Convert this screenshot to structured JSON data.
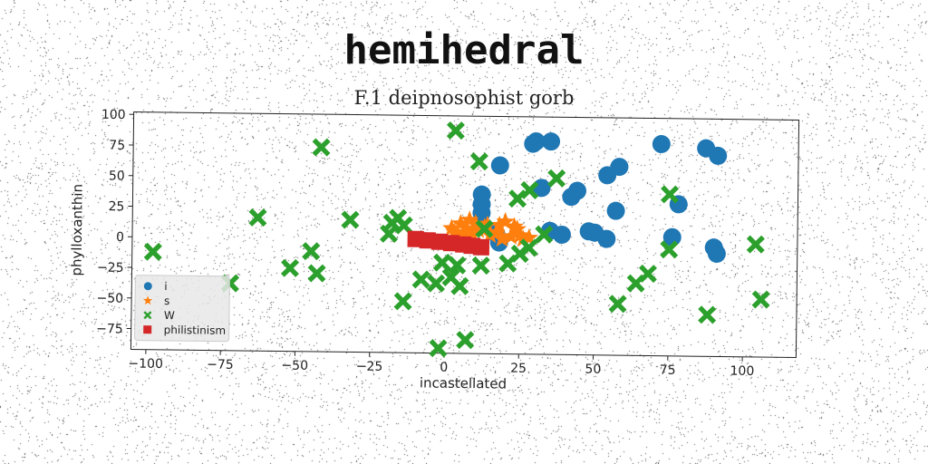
{
  "title": "hemihedral",
  "subtitle": "F.1 deipnosophist gorb",
  "chart_data": {
    "type": "scatter",
    "xlabel": "incastellated",
    "ylabel": "phylloxanthin",
    "xlim": [
      -105,
      118
    ],
    "ylim": [
      -92,
      102
    ],
    "xticks": [
      -100,
      -75,
      -50,
      -25,
      0,
      25,
      50,
      75,
      100
    ],
    "yticks": [
      -75,
      -50,
      -25,
      0,
      25,
      50,
      75,
      100
    ],
    "grid": false,
    "legend_position": "lower-left",
    "series": [
      {
        "name": "i",
        "marker": "circle",
        "color": "#1f77b4",
        "points": [
          [
            30,
            82
          ],
          [
            35,
            82
          ],
          [
            29,
            80
          ],
          [
            18,
            62
          ],
          [
            72,
            81
          ],
          [
            87,
            78
          ],
          [
            91,
            72
          ],
          [
            58,
            62
          ],
          [
            54,
            55
          ],
          [
            32,
            44
          ],
          [
            44,
            42
          ],
          [
            42,
            37
          ],
          [
            12,
            38
          ],
          [
            12,
            30
          ],
          [
            57,
            26
          ],
          [
            78,
            32
          ],
          [
            48,
            9
          ],
          [
            54,
            3
          ],
          [
            35,
            9
          ],
          [
            39,
            6
          ],
          [
            17,
            6
          ],
          [
            18,
            -1
          ],
          [
            76,
            5
          ],
          [
            90,
            -3
          ],
          [
            91,
            -8
          ],
          [
            12,
            23
          ],
          [
            50,
            8
          ]
        ]
      },
      {
        "name": "s",
        "marker": "star",
        "color": "#ff7f0e",
        "points": [
          [
            2,
            10
          ],
          [
            5,
            14
          ],
          [
            8,
            17
          ],
          [
            11,
            9
          ],
          [
            14,
            13
          ],
          [
            17,
            7
          ],
          [
            20,
            16
          ],
          [
            22,
            4
          ],
          [
            24,
            10
          ],
          [
            26,
            2
          ],
          [
            6,
            5
          ],
          [
            9,
            4
          ],
          [
            13,
            11
          ],
          [
            18,
            13
          ],
          [
            3,
            7
          ],
          [
            15,
            5
          ],
          [
            23,
            12
          ],
          [
            19,
            2
          ],
          [
            10,
            14
          ],
          [
            7,
            10
          ],
          [
            25,
            5
          ],
          [
            28,
            3
          ]
        ]
      },
      {
        "name": "W",
        "marker": "x",
        "color": "#2ca02c",
        "points": [
          [
            3,
            90
          ],
          [
            -42,
            75
          ],
          [
            11,
            65
          ],
          [
            37,
            52
          ],
          [
            28,
            42
          ],
          [
            24,
            35
          ],
          [
            75,
            40
          ],
          [
            -63,
            17
          ],
          [
            -32,
            16
          ],
          [
            -18,
            14
          ],
          [
            -14,
            12
          ],
          [
            -16,
            18
          ],
          [
            -19,
            5
          ],
          [
            -98,
            -12
          ],
          [
            -45,
            -10
          ],
          [
            -52,
            -24
          ],
          [
            -43,
            -28
          ],
          [
            -72,
            -37
          ],
          [
            -1,
            -18
          ],
          [
            4,
            -20
          ],
          [
            2,
            -30
          ],
          [
            -8,
            -32
          ],
          [
            -3,
            -35
          ],
          [
            5,
            -37
          ],
          [
            12,
            -20
          ],
          [
            21,
            -18
          ],
          [
            25,
            -10
          ],
          [
            28,
            -5
          ],
          [
            33,
            6
          ],
          [
            13,
            10
          ],
          [
            -14,
            -50
          ],
          [
            58,
            -50
          ],
          [
            68,
            -25
          ],
          [
            64,
            -33
          ],
          [
            88,
            -58
          ],
          [
            106,
            -45
          ],
          [
            104,
            0
          ],
          [
            75,
            -5
          ],
          [
            7,
            -81
          ],
          [
            -2,
            -88
          ]
        ]
      },
      {
        "name": "philistinism",
        "marker": "square",
        "color": "#d62728",
        "points": [
          [
            -10,
            1
          ],
          [
            -6,
            0
          ],
          [
            -2,
            -1
          ],
          [
            2,
            -2
          ],
          [
            6,
            -3
          ],
          [
            9,
            -4
          ],
          [
            12,
            -5
          ]
        ]
      }
    ]
  }
}
